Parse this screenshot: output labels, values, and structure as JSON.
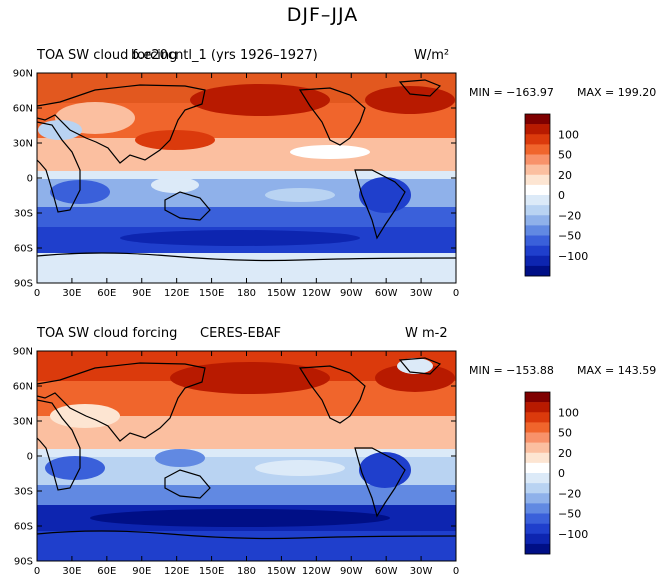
{
  "title": "DJF–JJA",
  "panels": [
    {
      "left_title": "TOA SW cloud forcing",
      "center_title": "b.e20cntl_1 (yrs 1926–1927)",
      "units": "W/m²",
      "min_label": "MIN = −163.97",
      "max_label": "MAX = 199.20"
    },
    {
      "left_title": "TOA SW cloud forcing",
      "center_title": "CERES-EBAF",
      "units": "W m-2",
      "min_label": "MIN = −153.88",
      "max_label": "MAX = 143.59"
    }
  ],
  "lat_ticks": [
    "90N",
    "60N",
    "30N",
    "0",
    "30S",
    "60S",
    "90S"
  ],
  "lon_ticks": [
    "0",
    "30E",
    "60E",
    "90E",
    "120E",
    "150E",
    "180",
    "150W",
    "120W",
    "90W",
    "60W",
    "30W",
    "0"
  ],
  "colorbar": {
    "labels": [
      "100",
      "50",
      "20",
      "0",
      "−20",
      "−50",
      "−100"
    ],
    "colors": [
      "#7f0000",
      "#b81a00",
      "#db3a0c",
      "#f0652c",
      "#f8926a",
      "#fbbfa0",
      "#fde5d2",
      "#ffffff",
      "#dceaf8",
      "#b9d3f2",
      "#8fb1ea",
      "#6189e2",
      "#3a60da",
      "#1f3fcc",
      "#0d25b0",
      "#000f86"
    ]
  },
  "colors": {
    "strong_positive": "#c42400",
    "positive": "#f0652c",
    "neutral": "#fde5d2",
    "negative": "#6189e2",
    "strong_negative": "#0d25b0"
  }
}
